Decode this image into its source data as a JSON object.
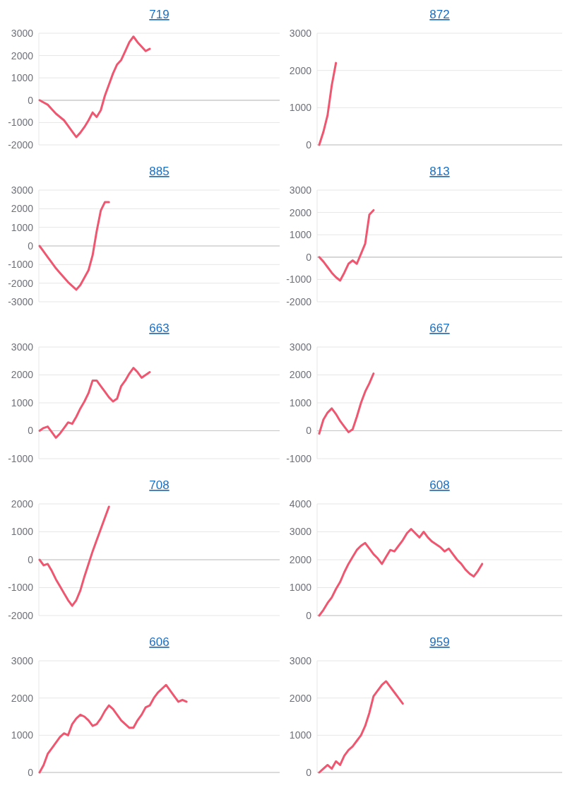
{
  "chart_data": [
    {
      "type": "line",
      "title": "719",
      "categories": [
        null,
        null,
        null,
        null,
        null,
        null,
        null,
        null,
        null,
        null,
        null,
        null,
        null,
        null,
        null,
        null,
        null,
        null,
        null,
        null,
        null,
        null,
        null,
        null,
        null,
        null,
        null,
        null,
        null,
        null,
        null,
        null,
        null,
        null,
        null,
        null,
        null,
        null,
        null,
        null,
        null,
        null,
        null,
        null,
        null,
        null,
        null,
        null,
        null,
        null,
        null,
        null,
        null,
        null,
        null,
        null,
        null,
        null,
        null,
        null
      ],
      "series": [
        {
          "color": "#ef5670",
          "values": [
            0,
            -100,
            -200,
            -400,
            -600,
            -750,
            -900,
            -1150,
            -1400,
            -1650,
            -1450,
            -1200,
            -900,
            -550,
            -750,
            -450,
            200,
            700,
            1200,
            1600,
            1800,
            2200,
            2600,
            2850,
            2600,
            2400,
            2200,
            2300,
            null,
            null,
            null,
            null,
            null,
            null,
            null,
            null,
            null,
            null,
            null,
            null,
            null,
            null,
            null,
            null,
            null,
            null,
            null,
            null,
            null,
            null,
            null,
            null,
            null,
            null,
            null,
            null,
            null,
            null,
            null,
            null
          ]
        }
      ],
      "ylim": [
        -2000,
        3000
      ],
      "yticks": [
        -2000,
        -1000,
        0,
        1000,
        2000,
        3000
      ],
      "grid": "y"
    },
    {
      "type": "line",
      "title": "872",
      "categories": [
        null,
        null,
        null,
        null,
        null,
        null,
        null,
        null,
        null,
        null,
        null,
        null,
        null,
        null,
        null,
        null,
        null,
        null,
        null,
        null,
        null,
        null,
        null,
        null,
        null,
        null,
        null,
        null,
        null,
        null,
        null,
        null,
        null,
        null,
        null,
        null,
        null,
        null,
        null,
        null,
        null,
        null,
        null,
        null,
        null,
        null,
        null,
        null,
        null,
        null,
        null,
        null,
        null,
        null,
        null,
        null,
        null,
        null,
        null,
        null
      ],
      "series": [
        {
          "color": "#ef5670",
          "values": [
            0,
            350,
            800,
            1600,
            2200,
            null,
            null,
            null,
            null,
            null,
            null,
            null,
            null,
            null,
            null,
            null,
            null,
            null,
            null,
            null,
            null,
            null,
            null,
            null,
            null,
            null,
            null,
            null,
            null,
            null,
            null,
            null,
            null,
            null,
            null,
            null,
            null,
            null,
            null,
            null,
            null,
            null,
            null,
            null,
            null,
            null,
            null,
            null,
            null,
            null,
            null,
            null,
            null,
            null,
            null,
            null,
            null,
            null,
            null,
            null
          ]
        }
      ],
      "ylim": [
        0,
        3000
      ],
      "yticks": [
        0,
        1000,
        2000,
        3000
      ],
      "grid": "y"
    },
    {
      "type": "line",
      "title": "885",
      "categories": [
        null,
        null,
        null,
        null,
        null,
        null,
        null,
        null,
        null,
        null,
        null,
        null,
        null,
        null,
        null,
        null,
        null,
        null,
        null,
        null,
        null,
        null,
        null,
        null,
        null,
        null,
        null,
        null,
        null,
        null,
        null,
        null,
        null,
        null,
        null,
        null,
        null,
        null,
        null,
        null,
        null,
        null,
        null,
        null,
        null,
        null,
        null,
        null,
        null,
        null,
        null,
        null,
        null,
        null,
        null,
        null,
        null,
        null,
        null,
        null
      ],
      "series": [
        {
          "color": "#ef5670",
          "values": [
            0,
            -300,
            -600,
            -900,
            -1200,
            -1450,
            -1700,
            -1950,
            -2150,
            -2350,
            -2100,
            -1700,
            -1300,
            -500,
            800,
            1900,
            2350,
            2350,
            null,
            null,
            null,
            null,
            null,
            null,
            null,
            null,
            null,
            null,
            null,
            null,
            null,
            null,
            null,
            null,
            null,
            null,
            null,
            null,
            null,
            null,
            null,
            null,
            null,
            null,
            null,
            null,
            null,
            null,
            null,
            null,
            null,
            null,
            null,
            null,
            null,
            null,
            null,
            null,
            null,
            null
          ]
        }
      ],
      "ylim": [
        -3000,
        3000
      ],
      "yticks": [
        -3000,
        -2000,
        -1000,
        0,
        1000,
        2000,
        3000
      ],
      "grid": "y"
    },
    {
      "type": "line",
      "title": "813",
      "categories": [
        null,
        null,
        null,
        null,
        null,
        null,
        null,
        null,
        null,
        null,
        null,
        null,
        null,
        null,
        null,
        null,
        null,
        null,
        null,
        null,
        null,
        null,
        null,
        null,
        null,
        null,
        null,
        null,
        null,
        null,
        null,
        null,
        null,
        null,
        null,
        null,
        null,
        null,
        null,
        null,
        null,
        null,
        null,
        null,
        null,
        null,
        null,
        null,
        null,
        null,
        null,
        null,
        null,
        null,
        null,
        null,
        null,
        null,
        null,
        null
      ],
      "series": [
        {
          "color": "#ef5670",
          "values": [
            0,
            -200,
            -450,
            -700,
            -900,
            -1050,
            -700,
            -300,
            -150,
            -300,
            150,
            600,
            1900,
            2100,
            null,
            null,
            null,
            null,
            null,
            null,
            null,
            null,
            null,
            null,
            null,
            null,
            null,
            null,
            null,
            null,
            null,
            null,
            null,
            null,
            null,
            null,
            null,
            null,
            null,
            null,
            null,
            null,
            null,
            null,
            null,
            null,
            null,
            null,
            null,
            null,
            null,
            null,
            null,
            null,
            null,
            null,
            null,
            null,
            null,
            null
          ]
        }
      ],
      "ylim": [
        -2000,
        3000
      ],
      "yticks": [
        -2000,
        -1000,
        0,
        1000,
        2000,
        3000
      ],
      "grid": "y"
    },
    {
      "type": "line",
      "title": "663",
      "categories": [
        null,
        null,
        null,
        null,
        null,
        null,
        null,
        null,
        null,
        null,
        null,
        null,
        null,
        null,
        null,
        null,
        null,
        null,
        null,
        null,
        null,
        null,
        null,
        null,
        null,
        null,
        null,
        null,
        null,
        null,
        null,
        null,
        null,
        null,
        null,
        null,
        null,
        null,
        null,
        null,
        null,
        null,
        null,
        null,
        null,
        null,
        null,
        null,
        null,
        null,
        null,
        null,
        null,
        null,
        null,
        null,
        null,
        null,
        null,
        null
      ],
      "series": [
        {
          "color": "#ef5670",
          "values": [
            0,
            100,
            150,
            -50,
            -250,
            -100,
            100,
            300,
            250,
            500,
            800,
            1050,
            1350,
            1800,
            1800,
            1600,
            1400,
            1200,
            1050,
            1150,
            1600,
            1800,
            2050,
            2250,
            2100,
            1900,
            2000,
            2100,
            null,
            null,
            null,
            null,
            null,
            null,
            null,
            null,
            null,
            null,
            null,
            null,
            null,
            null,
            null,
            null,
            null,
            null,
            null,
            null,
            null,
            null,
            null,
            null,
            null,
            null,
            null,
            null,
            null,
            null,
            null,
            null
          ]
        }
      ],
      "ylim": [
        -1000,
        3000
      ],
      "yticks": [
        -1000,
        0,
        1000,
        2000,
        3000
      ],
      "grid": "y"
    },
    {
      "type": "line",
      "title": "667",
      "categories": [
        null,
        null,
        null,
        null,
        null,
        null,
        null,
        null,
        null,
        null,
        null,
        null,
        null,
        null,
        null,
        null,
        null,
        null,
        null,
        null,
        null,
        null,
        null,
        null,
        null,
        null,
        null,
        null,
        null,
        null,
        null,
        null,
        null,
        null,
        null,
        null,
        null,
        null,
        null,
        null,
        null,
        null,
        null,
        null,
        null,
        null,
        null,
        null,
        null,
        null,
        null,
        null,
        null,
        null,
        null,
        null,
        null,
        null,
        null,
        null
      ],
      "series": [
        {
          "color": "#ef5670",
          "values": [
            -100,
            400,
            650,
            800,
            600,
            350,
            150,
            -50,
            50,
            500,
            1000,
            1400,
            1700,
            2050,
            null,
            null,
            null,
            null,
            null,
            null,
            null,
            null,
            null,
            null,
            null,
            null,
            null,
            null,
            null,
            null,
            null,
            null,
            null,
            null,
            null,
            null,
            null,
            null,
            null,
            null,
            null,
            null,
            null,
            null,
            null,
            null,
            null,
            null,
            null,
            null,
            null,
            null,
            null,
            null,
            null,
            null,
            null,
            null,
            null,
            null
          ]
        }
      ],
      "ylim": [
        -1000,
        3000
      ],
      "yticks": [
        -1000,
        0,
        1000,
        2000,
        3000
      ],
      "grid": "y"
    },
    {
      "type": "line",
      "title": "708",
      "categories": [
        null,
        null,
        null,
        null,
        null,
        null,
        null,
        null,
        null,
        null,
        null,
        null,
        null,
        null,
        null,
        null,
        null,
        null,
        null,
        null,
        null,
        null,
        null,
        null,
        null,
        null,
        null,
        null,
        null,
        null,
        null,
        null,
        null,
        null,
        null,
        null,
        null,
        null,
        null,
        null,
        null,
        null,
        null,
        null,
        null,
        null,
        null,
        null,
        null,
        null,
        null,
        null,
        null,
        null,
        null,
        null,
        null,
        null,
        null,
        null
      ],
      "series": [
        {
          "color": "#ef5670",
          "values": [
            0,
            -200,
            -150,
            -400,
            -700,
            -950,
            -1200,
            -1450,
            -1650,
            -1450,
            -1100,
            -600,
            -150,
            300,
            700,
            1100,
            1500,
            1900,
            null,
            null,
            null,
            null,
            null,
            null,
            null,
            null,
            null,
            null,
            null,
            null,
            null,
            null,
            null,
            null,
            null,
            null,
            null,
            null,
            null,
            null,
            null,
            null,
            null,
            null,
            null,
            null,
            null,
            null,
            null,
            null,
            null,
            null,
            null,
            null,
            null,
            null,
            null,
            null,
            null,
            null
          ]
        }
      ],
      "ylim": [
        -2000,
        2000
      ],
      "yticks": [
        -2000,
        -1000,
        0,
        1000,
        2000
      ],
      "grid": "y"
    },
    {
      "type": "line",
      "title": "608",
      "categories": [
        null,
        null,
        null,
        null,
        null,
        null,
        null,
        null,
        null,
        null,
        null,
        null,
        null,
        null,
        null,
        null,
        null,
        null,
        null,
        null,
        null,
        null,
        null,
        null,
        null,
        null,
        null,
        null,
        null,
        null,
        null,
        null,
        null,
        null,
        null,
        null,
        null,
        null,
        null,
        null,
        null,
        null,
        null,
        null,
        null,
        null,
        null,
        null,
        null,
        null,
        null,
        null,
        null,
        null,
        null,
        null,
        null,
        null,
        null,
        null
      ],
      "series": [
        {
          "color": "#ef5670",
          "values": [
            0,
            200,
            450,
            650,
            950,
            1200,
            1550,
            1850,
            2100,
            2350,
            2500,
            2600,
            2400,
            2200,
            2050,
            1850,
            2100,
            2350,
            2300,
            2500,
            2700,
            2950,
            3100,
            2950,
            2800,
            3000,
            2800,
            2650,
            2550,
            2450,
            2300,
            2400,
            2200,
            2000,
            1850,
            1650,
            1500,
            1400,
            1600,
            1850,
            null,
            null,
            null,
            null,
            null,
            null,
            null,
            null,
            null,
            null,
            null,
            null,
            null,
            null,
            null,
            null,
            null,
            null,
            null,
            null
          ]
        }
      ],
      "ylim": [
        0,
        4000
      ],
      "yticks": [
        0,
        1000,
        2000,
        3000,
        4000
      ],
      "grid": "y"
    },
    {
      "type": "line",
      "title": "606",
      "categories": [
        null,
        null,
        null,
        null,
        null,
        null,
        null,
        null,
        null,
        null,
        null,
        null,
        null,
        null,
        null,
        null,
        null,
        null,
        null,
        null,
        null,
        null,
        null,
        null,
        null,
        null,
        null,
        null,
        null,
        null,
        null,
        null,
        null,
        null,
        null,
        null,
        null,
        null,
        null,
        null,
        null,
        null,
        null,
        null,
        null,
        null,
        null,
        null,
        null,
        null,
        null,
        null,
        null,
        null,
        null,
        null,
        null,
        null,
        null,
        null
      ],
      "series": [
        {
          "color": "#ef5670",
          "values": [
            0,
            200,
            500,
            650,
            800,
            950,
            1050,
            1000,
            1300,
            1450,
            1550,
            1500,
            1400,
            1250,
            1300,
            1450,
            1650,
            1800,
            1700,
            1550,
            1400,
            1300,
            1200,
            1200,
            1400,
            1550,
            1750,
            1800,
            2000,
            2150,
            2250,
            2350,
            2200,
            2050,
            1900,
            1950,
            1900,
            null,
            null,
            null,
            null,
            null,
            null,
            null,
            null,
            null,
            null,
            null,
            null,
            null,
            null,
            null,
            null,
            null,
            null,
            null,
            null,
            null,
            null,
            null
          ]
        }
      ],
      "ylim": [
        0,
        3000
      ],
      "yticks": [
        0,
        1000,
        2000,
        3000
      ],
      "grid": "y"
    },
    {
      "type": "line",
      "title": "959",
      "categories": [
        null,
        null,
        null,
        null,
        null,
        null,
        null,
        null,
        null,
        null,
        null,
        null,
        null,
        null,
        null,
        null,
        null,
        null,
        null,
        null,
        null,
        null,
        null,
        null,
        null,
        null,
        null,
        null,
        null,
        null,
        null,
        null,
        null,
        null,
        null,
        null,
        null,
        null,
        null,
        null,
        null,
        null,
        null,
        null,
        null,
        null,
        null,
        null,
        null,
        null,
        null,
        null,
        null,
        null,
        null,
        null,
        null,
        null,
        null,
        null
      ],
      "series": [
        {
          "color": "#ef5670",
          "values": [
            0,
            100,
            200,
            100,
            300,
            200,
            450,
            600,
            700,
            850,
            1000,
            1250,
            1600,
            2050,
            2200,
            2350,
            2450,
            2300,
            2150,
            2000,
            1850,
            null,
            null,
            null,
            null,
            null,
            null,
            null,
            null,
            null,
            null,
            null,
            null,
            null,
            null,
            null,
            null,
            null,
            null,
            null,
            null,
            null,
            null,
            null,
            null,
            null,
            null,
            null,
            null,
            null,
            null,
            null,
            null,
            null,
            null,
            null,
            null,
            null,
            null,
            null
          ]
        }
      ],
      "ylim": [
        0,
        3000
      ],
      "yticks": [
        0,
        1000,
        2000,
        3000
      ],
      "grid": "y"
    }
  ]
}
